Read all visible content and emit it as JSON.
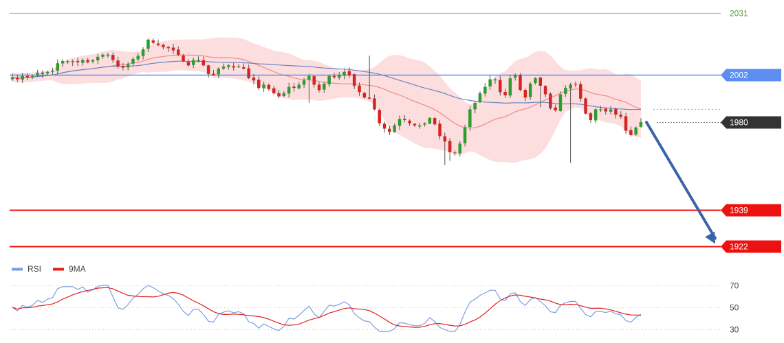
{
  "chart_data": [
    {
      "type": "candlestick",
      "title": "",
      "xlabel": "",
      "ylabel": "",
      "ylim": [
        1917,
        2037
      ],
      "levels": [
        {
          "value": 2031,
          "label": "2031",
          "color": "#9fd18a",
          "text_color": "#5aa032",
          "style": "plain"
        },
        {
          "value": 2002,
          "label": "2002",
          "color": "#5b8ef0",
          "text_color": "#ffffff",
          "style": "tag"
        },
        {
          "value": 1980,
          "label": "1980",
          "color": "#333333",
          "text_color": "#ffffff",
          "style": "tag"
        },
        {
          "value": 1939,
          "label": "1939",
          "color": "#ee1111",
          "text_color": "#ffffff",
          "style": "tag"
        },
        {
          "value": 1922,
          "label": "1922",
          "color": "#ee1111",
          "text_color": "#ffffff",
          "style": "tag"
        }
      ],
      "current_price": 1980,
      "forecast_arrow": {
        "from": 1980,
        "to": 1922,
        "direction": "down",
        "color": "#3a64a8"
      },
      "colors": {
        "up": "#2e9c2e",
        "down": "#d62424",
        "bands": "#fbd3d3",
        "fast_ma": "#f08a8a",
        "slow_ma": "#6a86c2"
      },
      "closes": [
        2001.0,
        2000.0,
        2001.5,
        2001.0,
        2001.5,
        2003.0,
        2002.5,
        2003.5,
        2004.0,
        2007.5,
        2008.5,
        2008.5,
        2008.5,
        2008.0,
        2009.0,
        2008.0,
        2009.0,
        2010.5,
        2011.5,
        2011.5,
        2009.0,
        2006.0,
        2005.5,
        2007.0,
        2009.5,
        2011.0,
        2014.0,
        2018.5,
        2017.0,
        2016.0,
        2015.0,
        2014.5,
        2013.5,
        2011.5,
        2008.5,
        2006.5,
        2009.0,
        2009.0,
        2006.5,
        2002.5,
        2002.0,
        2005.0,
        2006.0,
        2006.5,
        2005.5,
        2006.0,
        2005.0,
        2000.5,
        1999.5,
        1996.0,
        1997.5,
        1995.5,
        1993.5,
        1992.0,
        1993.5,
        1996.5,
        1996.0,
        1997.5,
        1999.5,
        2001.5,
        1997.5,
        1995.0,
        1998.0,
        2001.5,
        2001.0,
        2002.0,
        2003.5,
        2002.0,
        1997.0,
        1994.0,
        1991.5,
        1991.0,
        1986.0,
        1979.5,
        1977.0,
        1975.5,
        1978.5,
        1981.5,
        1981.0,
        1979.5,
        1978.5,
        1978.5,
        1979.5,
        1982.0,
        1979.0,
        1973.5,
        1971.0,
        1966.0,
        1965.5,
        1970.0,
        1977.5,
        1986.0,
        1989.0,
        1993.5,
        1996.5,
        2000.0,
        2000.0,
        1994.0,
        1992.5,
        2000.5,
        2002.0,
        1995.0,
        1991.5,
        1998.0,
        2000.5,
        1997.0,
        1993.0,
        1986.5,
        1985.5,
        1993.0,
        1996.0,
        1997.5,
        1997.5,
        1991.0,
        1984.0,
        1981.0,
        1986.0,
        1986.0,
        1985.0,
        1986.0,
        1983.5,
        1982.5,
        1976.0,
        1974.0,
        1977.5,
        1980.0
      ]
    },
    {
      "type": "line",
      "title": "",
      "ylim": [
        25,
        75
      ],
      "ticks": [
        70,
        50,
        30
      ],
      "series": [
        {
          "name": "RSI",
          "color": "#7a9ee0"
        },
        {
          "name": "9MA",
          "color": "#e02020"
        }
      ]
    }
  ]
}
